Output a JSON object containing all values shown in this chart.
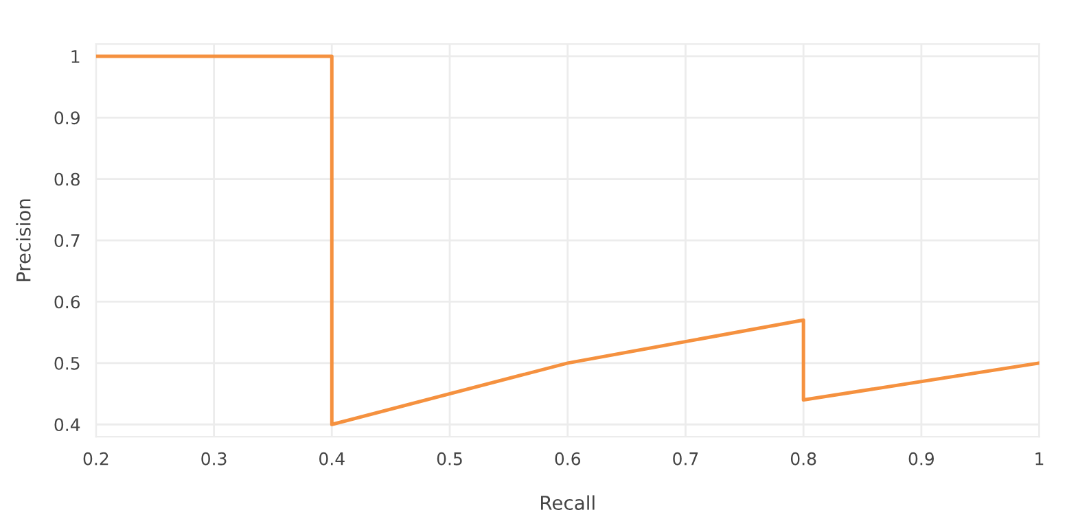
{
  "chart_data": {
    "type": "line",
    "xlabel": "Recall",
    "ylabel": "Precision",
    "series": [
      {
        "color": "#f5913f",
        "x": [
          0.2,
          0.4,
          0.4,
          0.6,
          0.8,
          0.8,
          1.0
        ],
        "values": [
          1.0,
          1.0,
          0.4,
          0.5,
          0.57,
          0.44,
          0.5
        ]
      }
    ],
    "xlim": [
      0.2,
      1.0
    ],
    "ylim": [
      0.38,
      1.02
    ],
    "xticks": [
      0.2,
      0.3,
      0.4,
      0.5,
      0.6,
      0.7,
      0.8,
      0.9,
      1
    ],
    "yticks": [
      0.4,
      0.5,
      0.6,
      0.7,
      0.8,
      0.9,
      1
    ],
    "grid": true,
    "marker": "none",
    "line_style": "solid"
  }
}
